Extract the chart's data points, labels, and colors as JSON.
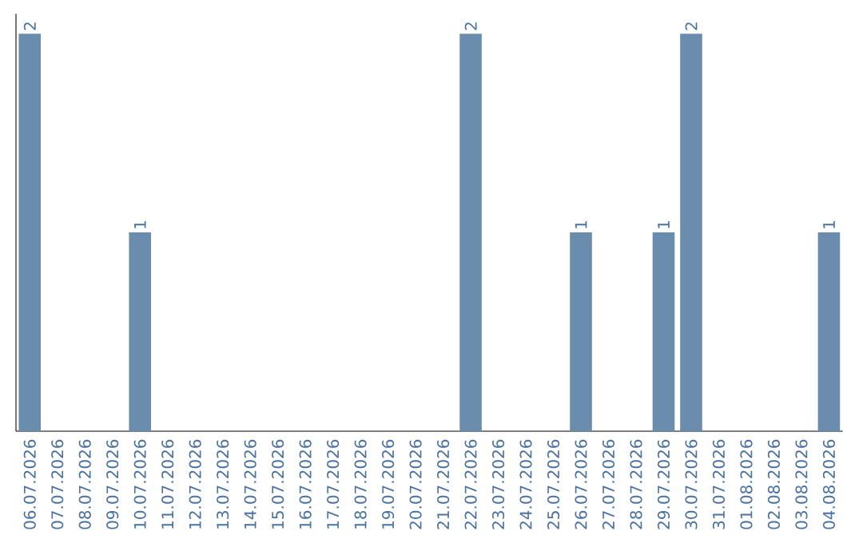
{
  "chart_data": {
    "type": "bar",
    "color": "#6a8cad",
    "categories": [
      "06.07.2026",
      "07.07.2026",
      "08.07.2026",
      "09.07.2026",
      "10.07.2026",
      "11.07.2026",
      "12.07.2026",
      "13.07.2026",
      "14.07.2026",
      "15.07.2026",
      "16.07.2026",
      "17.07.2026",
      "18.07.2026",
      "19.07.2026",
      "20.07.2026",
      "21.07.2026",
      "22.07.2026",
      "23.07.2026",
      "24.07.2026",
      "25.07.2026",
      "26.07.2026",
      "27.07.2026",
      "28.07.2026",
      "29.07.2026",
      "30.07.2026",
      "31.07.2026",
      "01.08.2026",
      "02.08.2026",
      "03.08.2026",
      "04.08.2026"
    ],
    "values": [
      2,
      0,
      0,
      0,
      1,
      0,
      0,
      0,
      0,
      0,
      0,
      0,
      0,
      0,
      0,
      0,
      2,
      0,
      0,
      0,
      1,
      0,
      0,
      1,
      2,
      0,
      0,
      0,
      0,
      1
    ],
    "value_labels": [
      "2",
      null,
      null,
      null,
      "1",
      null,
      null,
      null,
      null,
      null,
      null,
      null,
      null,
      null,
      null,
      null,
      "2",
      null,
      null,
      null,
      "1",
      null,
      null,
      "1",
      "2",
      null,
      null,
      null,
      null,
      "1"
    ]
  }
}
